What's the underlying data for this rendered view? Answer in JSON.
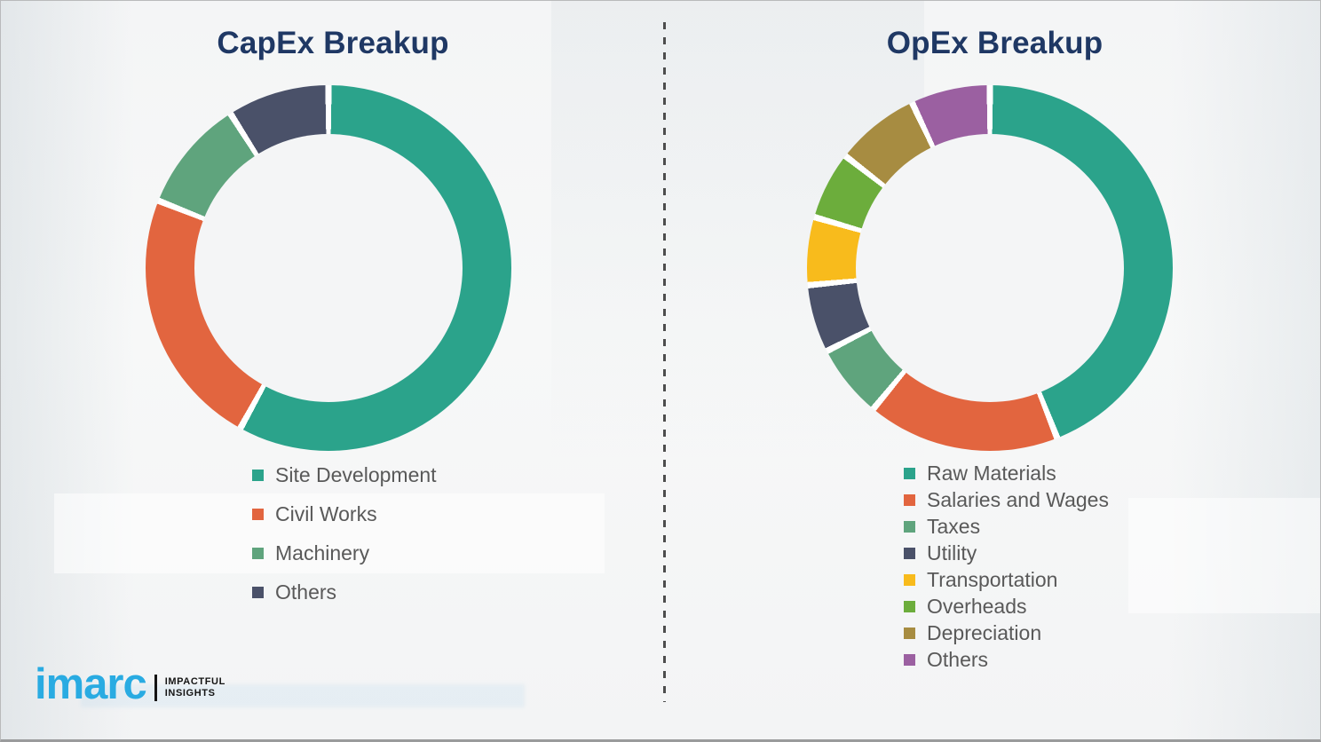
{
  "page": {
    "background_color": "#f5f6f7",
    "divider_style": "vertical-dashed",
    "divider_color": "#4d4d4d"
  },
  "logo": {
    "wordmark": "imarc",
    "wordmark_color": "#29ABE2",
    "tagline_line1": "IMPACTFUL",
    "tagline_line2": "INSIGHTS",
    "tagline_color": "#141414"
  },
  "chart_data": [
    {
      "type": "pie",
      "variant": "donut",
      "title": "CapEx Breakup",
      "title_color": "#1F3864",
      "legend_position": "below-left",
      "start_angle_deg": 0,
      "clockwise": true,
      "categories": [
        "Site Development",
        "Civil Works",
        "Machinery",
        "Others"
      ],
      "values": [
        58,
        23,
        10,
        9
      ],
      "unit": "percent (estimated from arc angles; no labels shown)",
      "colors": [
        "#2BA38B",
        "#E2653F",
        "#5FA47D",
        "#4A5169"
      ]
    },
    {
      "type": "pie",
      "variant": "donut",
      "title": "OpEx Breakup",
      "title_color": "#1F3864",
      "legend_position": "below-left",
      "start_angle_deg": 0,
      "clockwise": true,
      "categories": [
        "Raw Materials",
        "Salaries and Wages",
        "Taxes",
        "Utility",
        "Transportation",
        "Overheads",
        "Depreciation",
        "Others"
      ],
      "values": [
        44,
        17,
        6.5,
        6,
        6,
        6,
        7.5,
        7
      ],
      "unit": "percent (estimated from arc angles; no labels shown)",
      "colors": [
        "#2BA38B",
        "#E2653F",
        "#5FA47D",
        "#4A5169",
        "#F8BB1C",
        "#6CAD3C",
        "#A78C41",
        "#9B60A1"
      ]
    }
  ]
}
